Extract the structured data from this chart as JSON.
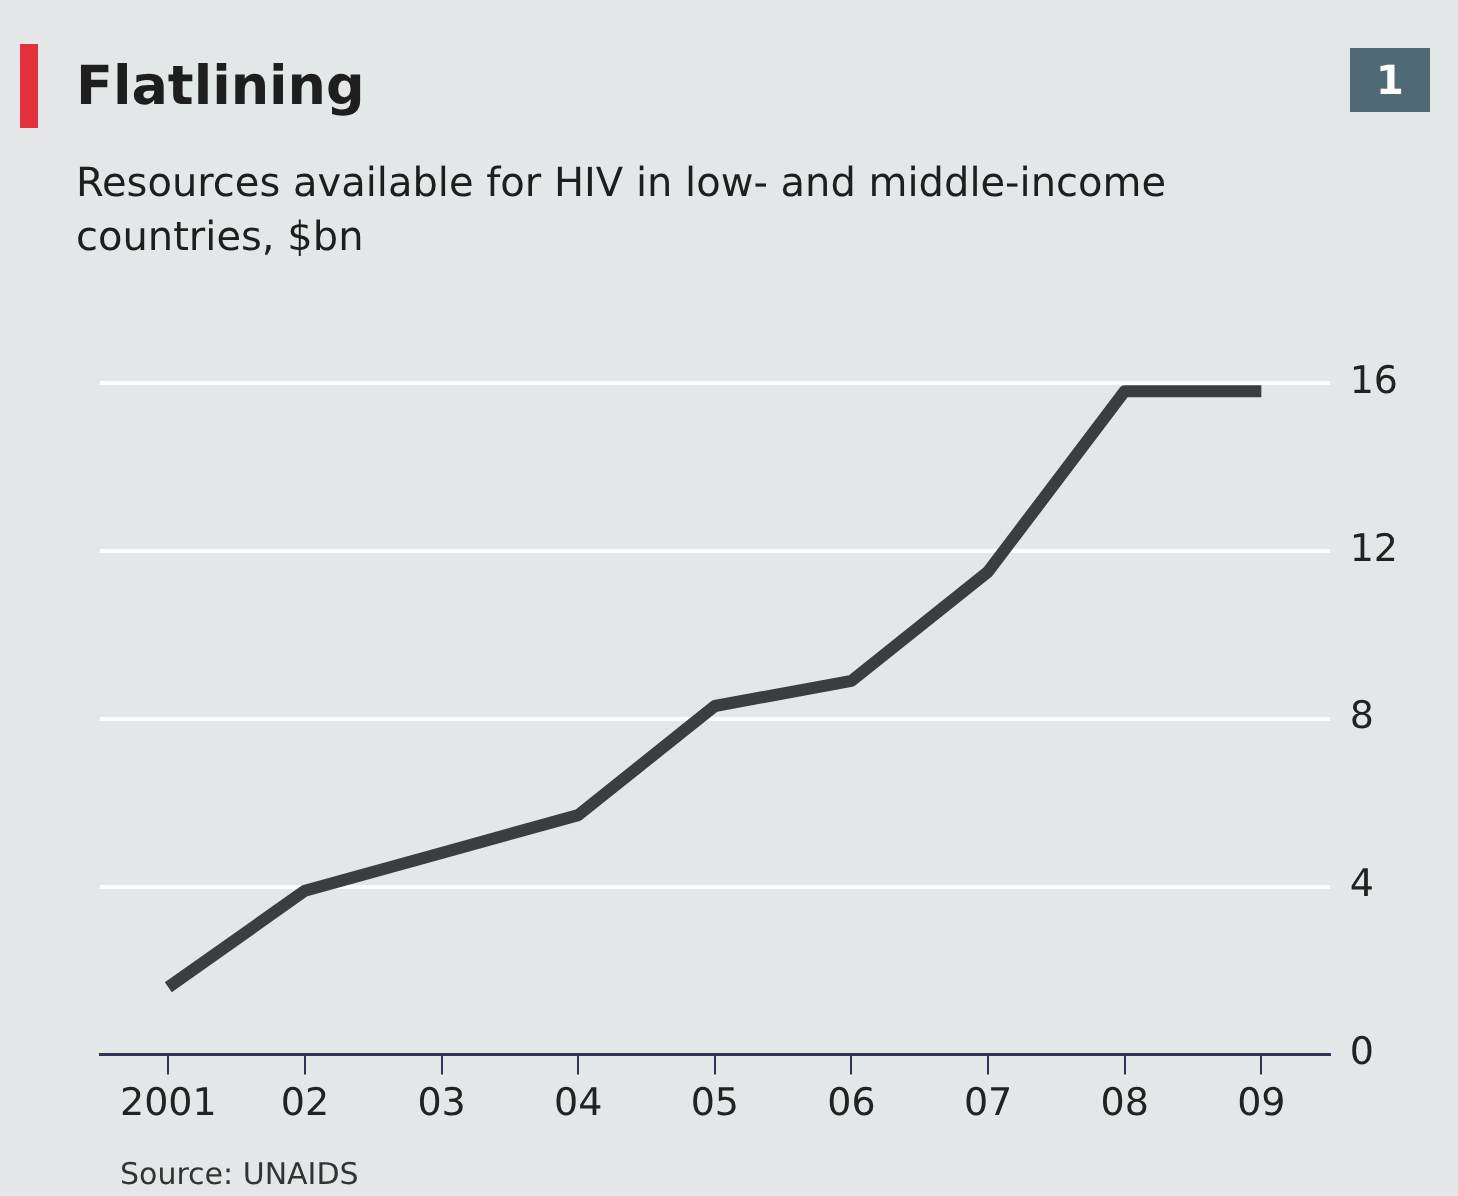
{
  "chart_data": {
    "type": "line",
    "title": "Flatlining",
    "subtitle": "Resources available for HIV in low- and middle-income countries, $bn",
    "categories": [
      "2001",
      "02",
      "03",
      "04",
      "05",
      "06",
      "07",
      "08",
      "09"
    ],
    "series": [
      {
        "color": "#3a3e41",
        "values": [
          1.6,
          3.9,
          4.8,
          5.7,
          8.3,
          8.9,
          11.5,
          15.8,
          15.8
        ]
      }
    ],
    "ylim": [
      0,
      16
    ],
    "yticks": [
      0,
      4,
      8,
      12,
      16
    ],
    "grid": "y",
    "legend": false,
    "marker": "none",
    "line_style": "solid",
    "annotations": [
      "1",
      "Source: UNAIDS"
    ]
  }
}
